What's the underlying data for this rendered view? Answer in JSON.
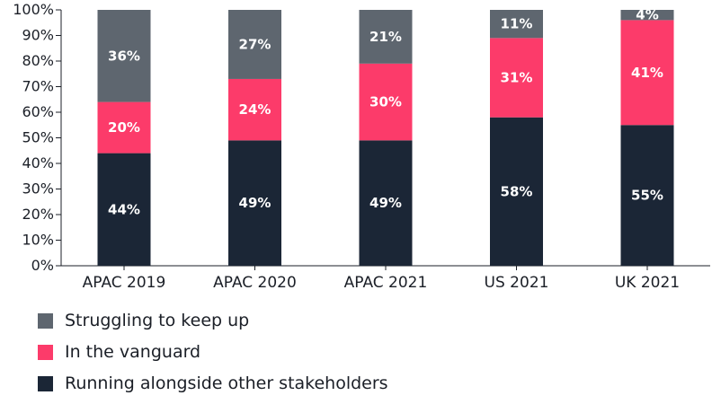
{
  "chart_data": {
    "type": "bar",
    "stacked": true,
    "categories": [
      "APAC 2019",
      "APAC 2020",
      "APAC 2021",
      "US 2021",
      "UK 2021"
    ],
    "series": [
      {
        "name": "Running alongside other stakeholders",
        "color": "#1b2636",
        "values": [
          44,
          49,
          49,
          58,
          55
        ],
        "labels": [
          "44%",
          "49%",
          "49%",
          "58%",
          "55%"
        ]
      },
      {
        "name": "In the vanguard",
        "color": "#fc3b6a",
        "values": [
          20,
          24,
          30,
          31,
          41
        ],
        "labels": [
          "20%",
          "24%",
          "30%",
          "31%",
          "41%"
        ]
      },
      {
        "name": "Struggling to keep up",
        "color": "#5e666f",
        "values": [
          36,
          27,
          21,
          11,
          4
        ],
        "labels": [
          "36%",
          "27%",
          "21%",
          "11%",
          "4%"
        ]
      }
    ],
    "ylim": [
      0,
      100
    ],
    "yticks": [
      "0%",
      "10%",
      "20%",
      "30%",
      "40%",
      "50%",
      "60%",
      "70%",
      "80%",
      "90%",
      "100%"
    ],
    "grid": false,
    "legend": {
      "position": "bottom-left",
      "items": [
        {
          "label": "Struggling to keep up",
          "color": "#5e666f"
        },
        {
          "label": "In the vanguard",
          "color": "#fc3b6a"
        },
        {
          "label": "Running alongside other stakeholders",
          "color": "#1b2636"
        }
      ]
    }
  }
}
